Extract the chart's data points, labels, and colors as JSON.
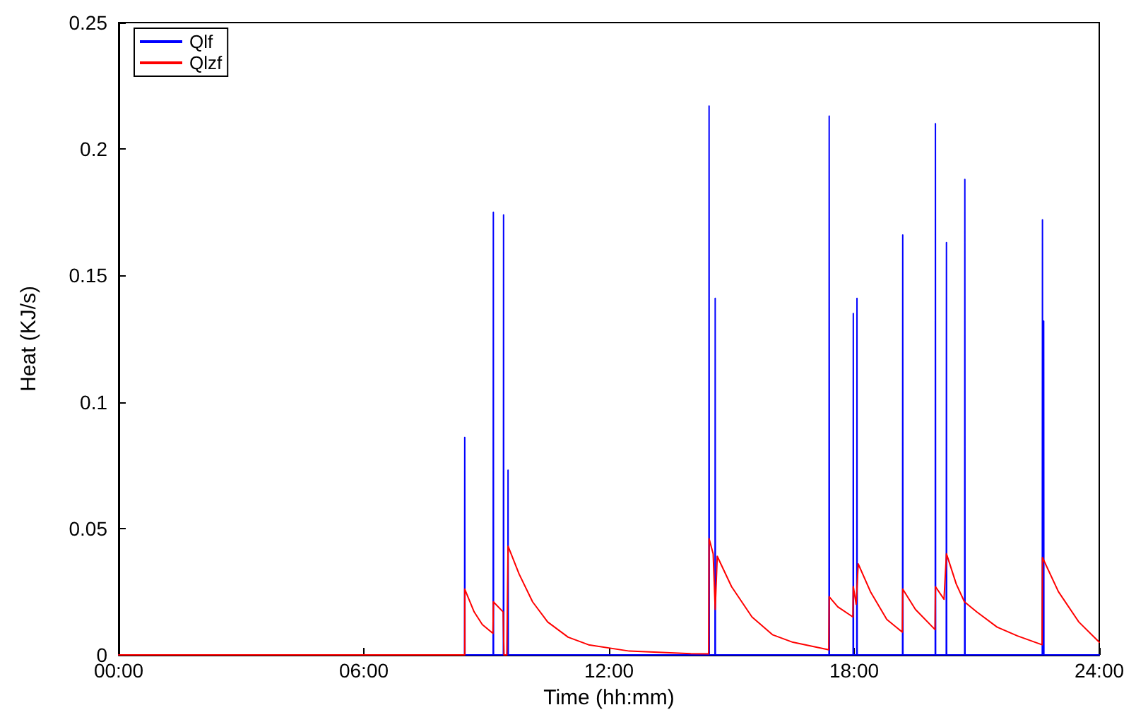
{
  "chart_data": {
    "type": "line",
    "xlabel": "Time (hh:mm)",
    "ylabel": "Heat (KJ/s)",
    "xlim": [
      0,
      24
    ],
    "xticks": [
      {
        "value": 0,
        "label": "00:00"
      },
      {
        "value": 6,
        "label": "06:00"
      },
      {
        "value": 12,
        "label": "12:00"
      },
      {
        "value": 18,
        "label": "18:00"
      },
      {
        "value": 24,
        "label": "24:00"
      }
    ],
    "ylim": [
      0,
      0.25
    ],
    "yticks": [
      0,
      0.05,
      0.1,
      0.15,
      0.2,
      0.25
    ],
    "grid": false,
    "legend": "top left",
    "marker": "none",
    "line_style": "solid",
    "series": [
      {
        "name": "Qlf",
        "color": "#0000ff",
        "x": [
          0,
          8.465,
          8.47,
          8.475,
          9.165,
          9.17,
          9.175,
          9.415,
          9.42,
          9.425,
          9.525,
          9.53,
          9.535,
          14.445,
          14.45,
          14.455,
          14.595,
          14.6,
          14.605,
          17.385,
          17.39,
          17.395,
          17.975,
          17.98,
          17.985,
          18.065,
          18.07,
          18.075,
          19.185,
          19.19,
          19.195,
          19.985,
          19.99,
          19.995,
          20.255,
          20.26,
          20.265,
          20.705,
          20.71,
          20.715,
          22.605,
          22.61,
          22.615,
          22.635,
          22.64,
          22.645,
          24
        ],
        "values": [
          0,
          0,
          0.086,
          0,
          0,
          0.175,
          0,
          0,
          0.174,
          0,
          0,
          0.073,
          0,
          0,
          0.217,
          0,
          0,
          0.141,
          0,
          0,
          0.213,
          0,
          0,
          0.135,
          0,
          0,
          0.141,
          0,
          0,
          0.166,
          0,
          0,
          0.21,
          0,
          0,
          0.163,
          0,
          0,
          0.188,
          0,
          0,
          0.172,
          0,
          0,
          0.132,
          0,
          0
        ]
      },
      {
        "name": "Qlzf",
        "color": "#ff0000",
        "x": [
          0,
          8.47,
          8.47,
          8.7,
          8.9,
          9.16,
          9.17,
          9.41,
          9.42,
          9.43,
          9.5,
          9.53,
          9.8,
          10.13,
          10.5,
          11,
          11.5,
          12.5,
          14,
          14.44,
          14.45,
          14.55,
          14.6,
          14.65,
          15,
          15.5,
          16,
          16.5,
          17.38,
          17.39,
          17.6,
          17.97,
          17.98,
          18.05,
          18.1,
          18.4,
          18.8,
          19.18,
          19.19,
          19.5,
          19.98,
          19.99,
          20.2,
          20.26,
          20.5,
          20.7,
          21,
          21.5,
          22,
          22.6,
          22.61,
          23,
          23.5,
          24
        ],
        "values": [
          0,
          0,
          0.026,
          0.017,
          0.012,
          0.0085,
          0.021,
          0.017,
          0.017,
          0,
          0,
          0.043,
          0.032,
          0.021,
          0.013,
          0.007,
          0.004,
          0.0015,
          0.0005,
          0.0004,
          0.046,
          0.04,
          0.018,
          0.039,
          0.027,
          0.015,
          0.008,
          0.005,
          0.002,
          0.023,
          0.019,
          0.015,
          0.027,
          0.02,
          0.036,
          0.025,
          0.014,
          0.009,
          0.026,
          0.018,
          0.01,
          0.027,
          0.022,
          0.04,
          0.028,
          0.021,
          0.017,
          0.011,
          0.0075,
          0.004,
          0.0385,
          0.025,
          0.013,
          0.005
        ]
      }
    ]
  }
}
